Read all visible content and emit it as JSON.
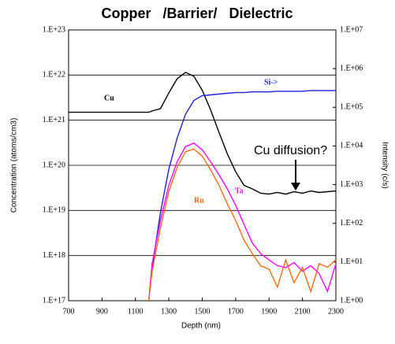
{
  "chart_data": {
    "type": "line",
    "title": "Copper   /Barrier/   Dielectric",
    "x_label": "Depth (nm)",
    "y_label": "Concentration (atoms/cm3)",
    "y2_label": "Intensity (c/s)",
    "annotation": "Cu diffusion?",
    "log_y": true,
    "grid": true,
    "xlim": [
      700,
      2300
    ],
    "xticks": [
      700,
      900,
      1100,
      1300,
      1500,
      1700,
      1900,
      2100,
      2300
    ],
    "ylim": [
      1e+17,
      1e+23
    ],
    "yticks": [
      {
        "value": 1e+17,
        "label": "1.E+17"
      },
      {
        "value": 1e+18,
        "label": "1.E+18"
      },
      {
        "value": 1e+19,
        "label": "1.E+19"
      },
      {
        "value": 1e+20,
        "label": "1.E+20"
      },
      {
        "value": 1e+21,
        "label": "1.E+21"
      },
      {
        "value": 1e+22,
        "label": "1.E+22"
      },
      {
        "value": 1e+23,
        "label": "1.E+23"
      }
    ],
    "y2lim": [
      1,
      10000000.0
    ],
    "y2ticks": [
      {
        "value": 1,
        "label": "1.E+00"
      },
      {
        "value": 10,
        "label": "1.E+01"
      },
      {
        "value": 100,
        "label": "1.E+02"
      },
      {
        "value": 1000,
        "label": "1.E+03"
      },
      {
        "value": 10000,
        "label": "1.E+04"
      },
      {
        "value": 100000,
        "label": "1.E+05"
      },
      {
        "value": 1000000,
        "label": "1.E+06"
      },
      {
        "value": 10000000,
        "label": "1.E+07"
      }
    ],
    "x": [
      700,
      800,
      900,
      1000,
      1100,
      1150,
      1180,
      1200,
      1250,
      1300,
      1350,
      1400,
      1450,
      1500,
      1550,
      1600,
      1650,
      1700,
      1750,
      1800,
      1850,
      1900,
      1950,
      2000,
      2050,
      2100,
      2150,
      2200,
      2250,
      2300
    ],
    "series": [
      {
        "name": "Cu",
        "color": "#000000",
        "values": [
          1.5e+21,
          1.5e+21,
          1.5e+21,
          1.5e+21,
          1.5e+21,
          1.5e+21,
          1.5e+21,
          1.6e+21,
          1.8e+21,
          4e+21,
          8.3e+21,
          1.15e+22,
          9.4e+21,
          4.6e+21,
          1.7e+21,
          5.4e+20,
          1.8e+20,
          7.2e+19,
          3.6e+19,
          3e+19,
          2.4e+19,
          2.3e+19,
          2.5e+19,
          2.3e+19,
          2.6e+19,
          2.4e+19,
          2.7e+19,
          2.5e+19,
          2.6e+19,
          2.7e+19
        ]
      },
      {
        "name": "Si->",
        "color": "#1f1fe0",
        "axis": "y2",
        "values": [
          null,
          null,
          null,
          null,
          null,
          null,
          1,
          7,
          190,
          2500,
          16000,
          66000,
          150000,
          200000,
          210000,
          220000,
          230000,
          240000,
          240000,
          250000,
          250000,
          250000,
          260000,
          260000,
          260000,
          260000,
          270000,
          270000,
          270000,
          270000
        ]
      },
      {
        "name": "Ta",
        "color": "#ff00ff",
        "values": [
          null,
          null,
          null,
          null,
          null,
          null,
          1e+17,
          6.6e+17,
          6e+18,
          3.6e+19,
          1.2e+20,
          2.6e+20,
          3.1e+20,
          2.2e+20,
          1.2e+20,
          6.2e+19,
          3e+19,
          1.3e+19,
          4.9e+18,
          1.9e+18,
          1.1e+18,
          8e+17,
          6e+17,
          5.4e+17,
          7e+17,
          4.5e+17,
          6e+17,
          4e+17,
          1.6e+17,
          6.6e+17
        ]
      },
      {
        "name": "Ru",
        "color": "#ff6a10",
        "values": [
          null,
          null,
          null,
          null,
          null,
          null,
          1e+17,
          4.4e+17,
          4.1e+18,
          2.6e+19,
          9e+19,
          2e+20,
          2.3e+20,
          1.6e+20,
          8e+19,
          3.6e+19,
          1.4e+19,
          6e+18,
          2.2e+18,
          1.1e+18,
          5.9e+17,
          5e+17,
          2e+17,
          8e+17,
          2.5e+17,
          5.5e+17,
          1.6e+17,
          6.6e+17,
          5.5e+17,
          8e+17
        ]
      }
    ]
  }
}
